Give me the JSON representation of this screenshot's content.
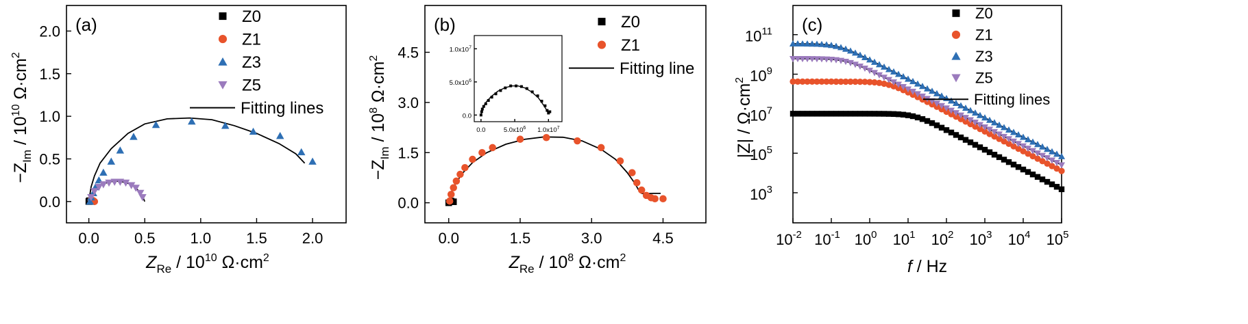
{
  "figure": {
    "background": "#ffffff"
  },
  "colors": {
    "Z0": "#000000",
    "Z1": "#e8532b",
    "Z3": "#2e6fb4",
    "Z5": "#9b7bbd",
    "fit": "#000000"
  },
  "chart_data": [
    {
      "id": "a",
      "type": "scatter",
      "panel_label": "(a)",
      "xlabel": "Z_Re / 10^10 Ω·cm^2",
      "xlabel_main": "Z",
      "xlabel_sub": "Re",
      "xlabel_unit": " / 10",
      "xlabel_exp": "10",
      "xlabel_tail": " Ω·cm",
      "xlabel_tail_exp": "2",
      "ylabel": "−Z_Im / 10^10 Ω·cm^2",
      "ylabel_main": "−Z",
      "ylabel_sub": "Im",
      "ylabel_unit": " / 10",
      "ylabel_exp": "10",
      "ylabel_tail": " Ω·cm",
      "ylabel_tail_exp": "2",
      "xlim": [
        -0.2,
        2.3
      ],
      "ylim": [
        -0.25,
        2.3
      ],
      "xticks": [
        "0.0",
        "0.5",
        "1.0",
        "1.5",
        "2.0"
      ],
      "xtick_values": [
        0,
        0.5,
        1.0,
        1.5,
        2.0
      ],
      "yticks": [
        "0.0",
        "0.5",
        "1.0",
        "1.5",
        "2.0"
      ],
      "ytick_values": [
        0,
        0.5,
        1.0,
        1.5,
        2.0
      ],
      "legend": [
        "Z0",
        "Z1",
        "Z3",
        "Z5",
        "Fitting lines"
      ],
      "series": [
        {
          "name": "Z0",
          "marker": "square",
          "x": [
            0.0,
            0.005,
            0.01
          ],
          "y": [
            0.0,
            0.01,
            0.0
          ]
        },
        {
          "name": "Z1",
          "marker": "circle",
          "x": [
            0.02,
            0.04,
            0.05
          ],
          "y": [
            0.02,
            0.01,
            0.0
          ]
        },
        {
          "name": "Z3",
          "marker": "triangle-up",
          "x": [
            0.01,
            0.02,
            0.04,
            0.06,
            0.09,
            0.13,
            0.2,
            0.28,
            0.4,
            0.6,
            0.92,
            1.22,
            1.47,
            1.71,
            1.9,
            2.0
          ],
          "y": [
            0.0,
            0.05,
            0.1,
            0.17,
            0.25,
            0.34,
            0.47,
            0.6,
            0.76,
            0.9,
            0.94,
            0.89,
            0.82,
            0.77,
            0.58,
            0.47
          ]
        },
        {
          "name": "Z5",
          "marker": "triangle-down",
          "x": [
            0.02,
            0.05,
            0.09,
            0.13,
            0.18,
            0.23,
            0.28,
            0.33,
            0.38,
            0.42,
            0.46,
            0.48
          ],
          "y": [
            0.05,
            0.12,
            0.17,
            0.2,
            0.22,
            0.23,
            0.23,
            0.22,
            0.19,
            0.16,
            0.1,
            0.05
          ]
        }
      ],
      "fits": [
        {
          "x": [
            0.0,
            0.02,
            0.05,
            0.1,
            0.2,
            0.35,
            0.5,
            0.7,
            0.9,
            1.1,
            1.3,
            1.5,
            1.7,
            1.85,
            1.93
          ],
          "y": [
            0.0,
            0.17,
            0.3,
            0.45,
            0.62,
            0.8,
            0.91,
            0.97,
            0.98,
            0.96,
            0.89,
            0.8,
            0.68,
            0.56,
            0.45
          ]
        },
        {
          "x": [
            0.0,
            0.03,
            0.07,
            0.12,
            0.18,
            0.24,
            0.3,
            0.36,
            0.41,
            0.45,
            0.48,
            0.5
          ],
          "y": [
            0.0,
            0.1,
            0.16,
            0.2,
            0.23,
            0.24,
            0.23,
            0.21,
            0.17,
            0.12,
            0.06,
            0.0
          ]
        }
      ]
    },
    {
      "id": "b",
      "type": "scatter",
      "panel_label": "(b)",
      "xlabel": "Z_Re / 10^8 Ω·cm^2",
      "xlabel_main": "Z",
      "xlabel_sub": "Re",
      "xlabel_unit": " / 10",
      "xlabel_exp": "8",
      "xlabel_tail": " Ω·cm",
      "xlabel_tail_exp": "2",
      "ylabel": "−Z_Im / 10^8 Ω·cm^2",
      "ylabel_main": "−Z",
      "ylabel_sub": "Im",
      "ylabel_unit": " / 10",
      "ylabel_exp": "8",
      "ylabel_tail": " Ω·cm",
      "ylabel_tail_exp": "2",
      "xlim": [
        -0.5,
        5.4
      ],
      "ylim": [
        -0.6,
        5.9
      ],
      "xticks": [
        "0.0",
        "1.5",
        "3.0",
        "4.5"
      ],
      "xtick_values": [
        0,
        1.5,
        3.0,
        4.5
      ],
      "yticks": [
        "0.0",
        "1.5",
        "3.0",
        "4.5"
      ],
      "ytick_values": [
        0,
        1.5,
        3.0,
        4.5
      ],
      "legend": [
        "Z0",
        "Z1",
        "Fitting line"
      ],
      "series": [
        {
          "name": "Z0",
          "marker": "square",
          "x": [
            0.0,
            0.05,
            0.1
          ],
          "y": [
            0.0,
            0.05,
            0.03
          ]
        },
        {
          "name": "Z1",
          "marker": "circle",
          "x": [
            0.02,
            0.05,
            0.1,
            0.16,
            0.24,
            0.34,
            0.5,
            0.7,
            0.92,
            1.5,
            2.05,
            2.7,
            3.2,
            3.6,
            3.85,
            3.95,
            4.05,
            4.15,
            4.25,
            4.33,
            4.5
          ],
          "y": [
            0.05,
            0.25,
            0.45,
            0.65,
            0.85,
            1.05,
            1.3,
            1.5,
            1.65,
            1.9,
            1.95,
            1.85,
            1.65,
            1.25,
            0.9,
            0.6,
            0.38,
            0.22,
            0.15,
            0.12,
            0.12
          ]
        }
      ],
      "fits": [
        {
          "x": [
            0.0,
            0.05,
            0.15,
            0.3,
            0.5,
            0.8,
            1.2,
            1.6,
            2.0,
            2.4,
            2.8,
            3.2,
            3.5,
            3.75,
            3.9,
            4.0,
            4.05,
            4.1,
            4.3,
            4.45
          ],
          "y": [
            0.0,
            0.3,
            0.6,
            0.9,
            1.2,
            1.5,
            1.75,
            1.9,
            1.97,
            1.96,
            1.85,
            1.6,
            1.3,
            0.9,
            0.6,
            0.35,
            0.28,
            0.27,
            0.28,
            0.28
          ]
        }
      ],
      "inset": {
        "xlim": [
          -0.1,
          1.2
        ],
        "ylim": [
          -0.1,
          1.2
        ],
        "xticks": [
          "0.0",
          "5.0x10",
          "1.0x10"
        ],
        "xtick_exps": [
          "",
          "6",
          "7"
        ],
        "xtick_values": [
          0.0,
          0.5,
          1.0
        ],
        "yticks": [
          "0.0",
          "5.0x10",
          "1.0x10"
        ],
        "ytick_exps": [
          "",
          "6",
          "7"
        ],
        "ytick_values": [
          0.0,
          0.5,
          1.0
        ],
        "points": {
          "x": [
            0.0,
            0.01,
            0.02,
            0.04,
            0.07,
            0.11,
            0.16,
            0.22,
            0.29,
            0.36,
            0.44,
            0.52,
            0.6,
            0.68,
            0.76,
            0.84,
            0.9,
            0.95,
            0.98,
            1.0,
            1.02
          ],
          "y": [
            0.0,
            0.05,
            0.09,
            0.13,
            0.17,
            0.22,
            0.27,
            0.32,
            0.37,
            0.41,
            0.44,
            0.44,
            0.43,
            0.4,
            0.35,
            0.29,
            0.21,
            0.14,
            0.07,
            0.03,
            0.05
          ]
        },
        "fit": {
          "x": [
            0.0,
            0.03,
            0.08,
            0.15,
            0.25,
            0.35,
            0.45,
            0.55,
            0.65,
            0.75,
            0.85,
            0.92,
            0.97,
            1.0
          ],
          "y": [
            0.0,
            0.12,
            0.2,
            0.28,
            0.36,
            0.41,
            0.44,
            0.44,
            0.41,
            0.35,
            0.26,
            0.16,
            0.08,
            0.02
          ]
        }
      }
    },
    {
      "id": "c",
      "type": "scatter",
      "panel_label": "(c)",
      "xscale": "log",
      "yscale": "log",
      "xlabel": "f / Hz",
      "xlabel_main": "f",
      "xlabel_tail": " / Hz",
      "ylabel": "|Z| / Ω·cm^2",
      "ylabel_main": "|Z| / Ω·cm",
      "ylabel_tail_exp": "2",
      "xlim": [
        0.01,
        100000
      ],
      "ylim": [
        30,
        3000000000000
      ],
      "xtick_exps": [
        "-2",
        "-1",
        "0",
        "1",
        "2",
        "3",
        "4",
        "5"
      ],
      "xtick_values": [
        0.01,
        0.1,
        1,
        10,
        100,
        1000,
        10000,
        100000
      ],
      "ytick_exps": [
        "3",
        "5",
        "7",
        "9",
        "11"
      ],
      "ytick_values": [
        1000,
        100000,
        10000000,
        1000000000,
        100000000000
      ],
      "tick_base": "10",
      "legend": [
        "Z0",
        "Z1",
        "Z3",
        "Z5",
        "Fitting lines"
      ],
      "series": [
        {
          "name": "Z0",
          "marker": "square",
          "model": {
            "r": 10000000,
            "fc": 15,
            "slope": 1.0
          }
        },
        {
          "name": "Z1",
          "marker": "circle",
          "model": {
            "r": 420000000,
            "fc": 3,
            "slope": 1.0
          }
        },
        {
          "name": "Z3",
          "marker": "triangle-up",
          "model": {
            "r": 35000000000,
            "fc": 0.15,
            "slope": 0.98
          }
        },
        {
          "name": "Z5",
          "marker": "triangle-down",
          "model": {
            "r": 6000000000,
            "fc": 0.25,
            "slope": 0.96
          }
        }
      ]
    }
  ]
}
